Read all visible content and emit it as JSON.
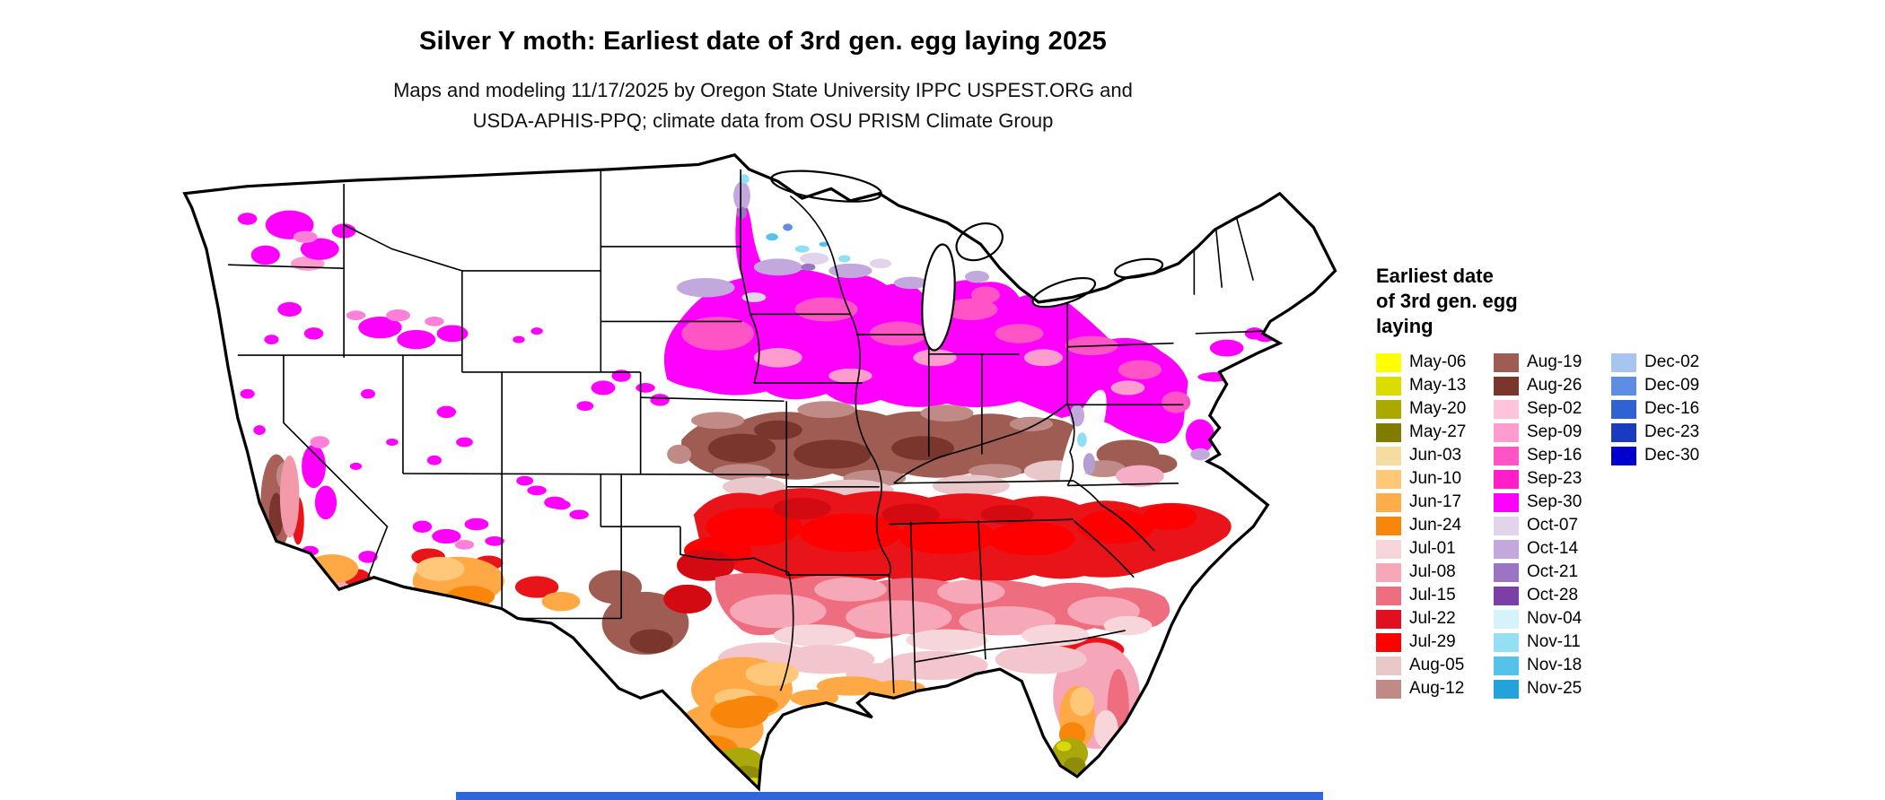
{
  "title": "Silver Y moth: Earliest date of 3rd gen. egg laying 2025",
  "subtitle": {
    "line1": "Maps and modeling 11/17/2025 by Oregon State University IPPC USPEST.ORG and",
    "line2": "USDA-APHIS-PPQ; climate data from OSU PRISM Climate Group"
  },
  "legend": {
    "title_lines": [
      "Earliest date",
      "of 3rd gen. egg",
      "laying"
    ],
    "columns": [
      [
        {
          "label": "May-06",
          "color": "#FFFF00"
        },
        {
          "label": "May-13",
          "color": "#DCDC00"
        },
        {
          "label": "May-20",
          "color": "#ABA800"
        },
        {
          "label": "May-27",
          "color": "#7F7C00"
        },
        {
          "label": "Jun-03",
          "color": "#F5DCA0"
        },
        {
          "label": "Jun-10",
          "color": "#FFC878"
        },
        {
          "label": "Jun-17",
          "color": "#FFAC4A"
        },
        {
          "label": "Jun-24",
          "color": "#F8860B"
        },
        {
          "label": "Jul-01",
          "color": "#F6D6DA"
        },
        {
          "label": "Jul-08",
          "color": "#F7A8B8"
        },
        {
          "label": "Jul-15",
          "color": "#EE6E80"
        },
        {
          "label": "Jul-22",
          "color": "#E01020"
        },
        {
          "label": "Jul-29",
          "color": "#FF0000"
        },
        {
          "label": "Aug-05",
          "color": "#E8C8C8"
        },
        {
          "label": "Aug-12",
          "color": "#C08A86"
        }
      ],
      [
        {
          "label": "Aug-19",
          "color": "#9E5C52"
        },
        {
          "label": "Aug-26",
          "color": "#7A352C"
        },
        {
          "label": "Sep-02",
          "color": "#FFC4DC"
        },
        {
          "label": "Sep-09",
          "color": "#FF9CCF"
        },
        {
          "label": "Sep-16",
          "color": "#FF54C6"
        },
        {
          "label": "Sep-23",
          "color": "#FF1EC8"
        },
        {
          "label": "Sep-30",
          "color": "#FF00FF"
        },
        {
          "label": "Oct-07",
          "color": "#E2D4EA"
        },
        {
          "label": "Oct-14",
          "color": "#C2A8DC"
        },
        {
          "label": "Oct-21",
          "color": "#9C74C4"
        },
        {
          "label": "Oct-28",
          "color": "#7C3FA8"
        },
        {
          "label": "Nov-04",
          "color": "#D6F2FB"
        },
        {
          "label": "Nov-11",
          "color": "#95DFF3"
        },
        {
          "label": "Nov-18",
          "color": "#55C3E9"
        },
        {
          "label": "Nov-25",
          "color": "#22A3DB"
        }
      ],
      [
        {
          "label": "Dec-02",
          "color": "#A6C6EF"
        },
        {
          "label": "Dec-09",
          "color": "#5E8EE3"
        },
        {
          "label": "Dec-16",
          "color": "#2F62D2"
        },
        {
          "label": "Dec-23",
          "color": "#1A3BBF"
        },
        {
          "label": "Dec-30",
          "color": "#0000CD"
        }
      ]
    ]
  },
  "map": {
    "region": "Contiguous United States",
    "no_generation_color": "#FFFFFF",
    "state_border_color": "#000000"
  },
  "bottom_strip_color": "#2E66E0"
}
